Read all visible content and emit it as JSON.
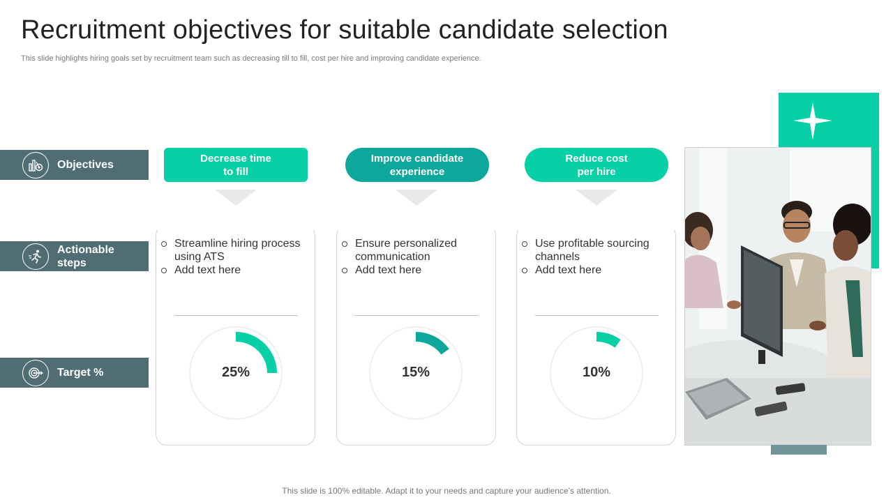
{
  "slide": {
    "title": "Recruitment objectives for suitable candidate selection",
    "subtitle": "This slide highlights hiring goals set by recruitment team such as decreasing till to fill, cost per hire and improving candidate experience.",
    "footer": "This slide is 100% editable. Adapt it to your needs and capture your audience’s attention."
  },
  "rows": {
    "objectives": {
      "label": "Objectives",
      "icon": "bar-chart-target-icon"
    },
    "actionable": {
      "label_line1": "Actionable",
      "label_line2": "steps",
      "icon": "running-figure-icon"
    },
    "target": {
      "label": "Target %",
      "icon": "dartboard-arrow-icon"
    }
  },
  "columns": [
    {
      "objective_line1": "Decrease time",
      "objective_line2": "to fill",
      "steps": [
        "Streamline hiring process using ATS",
        "Add text here"
      ],
      "target_label": "25%",
      "target_value": 25,
      "color": "#07cfa6"
    },
    {
      "objective_line1": "Improve candidate",
      "objective_line2": "experience",
      "steps": [
        "Ensure personalized communication",
        "Add text here"
      ],
      "target_label": "15%",
      "target_value": 15,
      "color": "#0ea79b"
    },
    {
      "objective_line1": "Reduce cost",
      "objective_line2": "per hire",
      "steps": [
        "Use profitable sourcing channels",
        "Add text here"
      ],
      "target_label": "10%",
      "target_value": 10,
      "color": "#07cfa6"
    }
  ],
  "colors": {
    "accent": "#07cfa6",
    "accent_dark": "#0ea79b",
    "row_label_bg": "#4f6d72",
    "gauge_track": "#efefef"
  },
  "decor": {
    "photo": "team-meeting-photo",
    "star_icon": "sparkle-star-icon"
  }
}
